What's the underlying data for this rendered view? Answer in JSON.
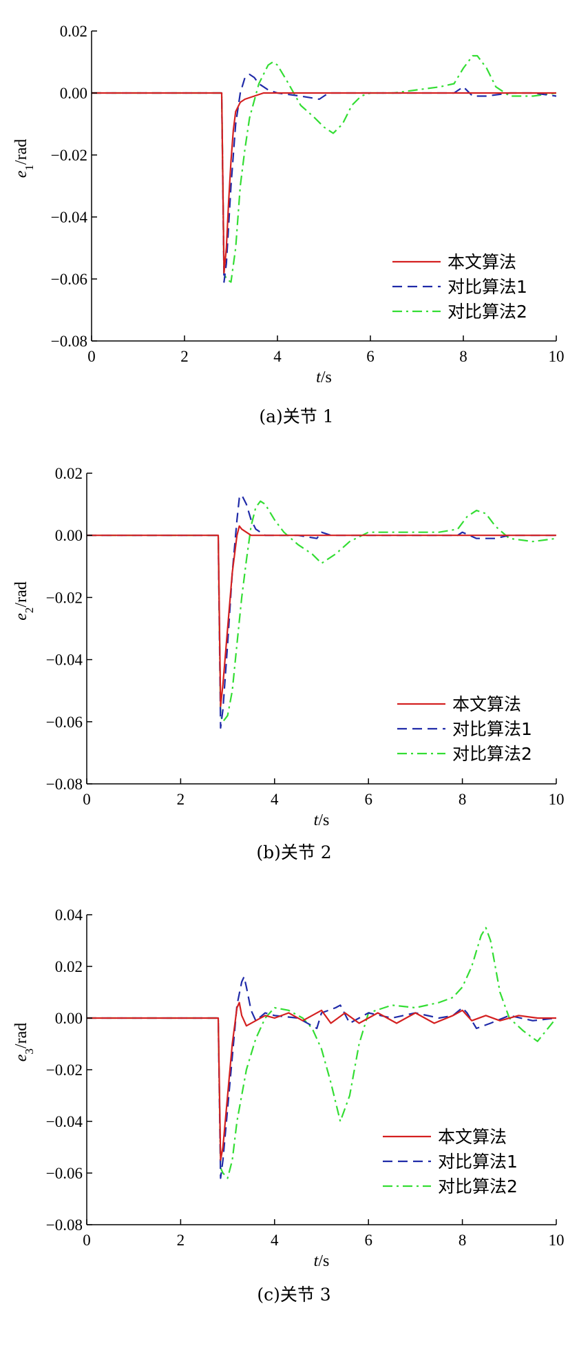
{
  "figure": {
    "legend_entries": [
      "本文算法",
      "对比算法1",
      "对比算法2"
    ],
    "colors": {
      "series_1": "#d42020",
      "series_2": "#1f2aa8",
      "series_3": "#33dd33"
    },
    "line_styles": [
      "solid",
      "dashed",
      "dash-dot"
    ],
    "legend_position": "lower-right"
  },
  "chart_data": [
    {
      "type": "line",
      "caption": "(a)关节 1",
      "ylabel": {
        "sym": "e",
        "sub": "1",
        "unit": "/rad"
      },
      "xlabel": {
        "sym": "t",
        "unit": "/s"
      },
      "xlim": [
        0,
        10
      ],
      "ylim": [
        -0.08,
        0.02
      ],
      "xticks": [
        0,
        2,
        4,
        6,
        8,
        10
      ],
      "xtick_labels": [
        "0",
        "2",
        "4",
        "6",
        "8",
        "10"
      ],
      "yticks": [
        0.02,
        0.0,
        -0.02,
        -0.04,
        -0.06,
        -0.08
      ],
      "ytick_labels": [
        "0.02",
        "0.00",
        "−0.02",
        "−0.04",
        "−0.06",
        "−0.08"
      ],
      "grid": false,
      "series": [
        {
          "name": "本文算法",
          "x": [
            0,
            2.8,
            2.85,
            2.9,
            2.95,
            3.0,
            3.05,
            3.1,
            3.2,
            3.3,
            3.5,
            3.7,
            4.0,
            5.0,
            6.0,
            7.0,
            7.8,
            8.0,
            9.0,
            10.0
          ],
          "y": [
            0,
            0,
            -0.058,
            -0.05,
            -0.035,
            -0.022,
            -0.012,
            -0.006,
            -0.003,
            -0.002,
            -0.001,
            0.0,
            0.0,
            0.0,
            0.0,
            0.0,
            0.0,
            0.0,
            0.0,
            0.0
          ]
        },
        {
          "name": "对比算法1",
          "x": [
            0,
            2.8,
            2.85,
            2.9,
            3.0,
            3.1,
            3.2,
            3.3,
            3.4,
            3.5,
            3.6,
            3.8,
            4.0,
            4.5,
            4.9,
            5.1,
            5.5,
            6.0,
            7.0,
            7.8,
            8.0,
            8.2,
            8.5,
            9.0,
            9.5,
            10.0
          ],
          "y": [
            0,
            0,
            -0.061,
            -0.055,
            -0.03,
            -0.01,
            0.0,
            0.005,
            0.006,
            0.005,
            0.003,
            0.001,
            0.0,
            -0.001,
            -0.002,
            0.0,
            0.0,
            0.0,
            0.0,
            0.0,
            0.002,
            -0.001,
            -0.001,
            0.0,
            0.0,
            -0.001
          ]
        },
        {
          "name": "对比算法2",
          "x": [
            0,
            2.8,
            2.85,
            2.9,
            3.0,
            3.1,
            3.2,
            3.3,
            3.4,
            3.6,
            3.8,
            3.9,
            4.0,
            4.2,
            4.5,
            4.8,
            5.0,
            5.2,
            5.4,
            5.6,
            5.8,
            6.0,
            6.5,
            7.0,
            7.5,
            7.8,
            8.0,
            8.2,
            8.3,
            8.5,
            8.7,
            9.0,
            9.5,
            10.0
          ],
          "y": [
            0,
            0,
            -0.058,
            -0.06,
            -0.061,
            -0.05,
            -0.03,
            -0.018,
            -0.008,
            0.003,
            0.009,
            0.01,
            0.009,
            0.004,
            -0.004,
            -0.008,
            -0.011,
            -0.013,
            -0.01,
            -0.004,
            -0.001,
            0.0,
            0.0,
            0.001,
            0.002,
            0.003,
            0.008,
            0.012,
            0.012,
            0.008,
            0.002,
            -0.001,
            -0.001,
            0.0
          ]
        }
      ]
    },
    {
      "type": "line",
      "caption": "(b)关节 2",
      "ylabel": {
        "sym": "e",
        "sub": "2",
        "unit": "/rad"
      },
      "xlabel": {
        "sym": "t",
        "unit": "/s"
      },
      "xlim": [
        0,
        10
      ],
      "ylim": [
        -0.08,
        0.02
      ],
      "xticks": [
        0,
        2,
        4,
        6,
        8,
        10
      ],
      "xtick_labels": [
        "0",
        "2",
        "4",
        "6",
        "8",
        "10"
      ],
      "yticks": [
        0.02,
        0.0,
        -0.02,
        -0.04,
        -0.06,
        -0.08
      ],
      "ytick_labels": [
        "0.02",
        "0.00",
        "−0.02",
        "−0.04",
        "−0.06",
        "−0.08"
      ],
      "grid": false,
      "series": [
        {
          "name": "本文算法",
          "x": [
            0,
            2.8,
            2.85,
            2.9,
            3.0,
            3.1,
            3.2,
            3.25,
            3.3,
            3.5,
            3.8,
            4.0,
            5.0,
            6.0,
            7.0,
            8.0,
            9.0,
            10.0
          ],
          "y": [
            0,
            0,
            -0.055,
            -0.048,
            -0.03,
            -0.012,
            0.0,
            0.003,
            0.002,
            0.0,
            0.0,
            0.0,
            0.0,
            0.0,
            0.0,
            0.0,
            0.0,
            0.0
          ]
        },
        {
          "name": "对比算法1",
          "x": [
            0,
            2.8,
            2.85,
            2.9,
            3.0,
            3.1,
            3.2,
            3.25,
            3.3,
            3.4,
            3.5,
            3.6,
            3.8,
            4.0,
            4.5,
            4.9,
            5.0,
            5.2,
            6.0,
            7.0,
            7.9,
            8.0,
            8.3,
            8.7,
            9.0,
            10.0
          ],
          "y": [
            0,
            0,
            -0.062,
            -0.056,
            -0.035,
            -0.012,
            0.005,
            0.012,
            0.013,
            0.01,
            0.005,
            0.002,
            0.0,
            0.0,
            0.0,
            -0.001,
            0.001,
            0.0,
            0.0,
            0.0,
            0.0,
            0.001,
            -0.001,
            -0.001,
            0.0,
            0.0
          ]
        },
        {
          "name": "对比算法2",
          "x": [
            0,
            2.8,
            2.85,
            2.9,
            3.0,
            3.1,
            3.2,
            3.3,
            3.4,
            3.5,
            3.6,
            3.7,
            3.8,
            4.0,
            4.2,
            4.5,
            4.8,
            5.0,
            5.3,
            5.6,
            6.0,
            6.5,
            7.0,
            7.5,
            7.9,
            8.1,
            8.3,
            8.5,
            8.7,
            9.0,
            9.5,
            10.0
          ],
          "y": [
            0,
            0,
            -0.058,
            -0.06,
            -0.058,
            -0.05,
            -0.035,
            -0.02,
            -0.008,
            0.003,
            0.009,
            0.011,
            0.01,
            0.005,
            0.001,
            -0.003,
            -0.006,
            -0.009,
            -0.006,
            -0.002,
            0.001,
            0.001,
            0.001,
            0.001,
            0.002,
            0.006,
            0.008,
            0.007,
            0.003,
            -0.001,
            -0.002,
            -0.001
          ]
        }
      ]
    },
    {
      "type": "line",
      "caption": "(c)关节 3",
      "ylabel": {
        "sym": "e",
        "sub": "3",
        "unit": "/rad"
      },
      "xlabel": {
        "sym": "t",
        "unit": "/s"
      },
      "xlim": [
        0,
        10
      ],
      "ylim": [
        -0.08,
        0.04
      ],
      "xticks": [
        0,
        2,
        4,
        6,
        8,
        10
      ],
      "xtick_labels": [
        "0",
        "2",
        "4",
        "6",
        "8",
        "10"
      ],
      "yticks": [
        0.04,
        0.02,
        0.0,
        -0.02,
        -0.04,
        -0.06,
        -0.08
      ],
      "ytick_labels": [
        "0.04",
        "0.02",
        "0.00",
        "−0.02",
        "−0.04",
        "−0.06",
        "−0.08"
      ],
      "grid": false,
      "series": [
        {
          "name": "本文算法",
          "x": [
            0,
            2.8,
            2.85,
            2.9,
            3.0,
            3.1,
            3.2,
            3.25,
            3.3,
            3.4,
            3.6,
            3.8,
            4.0,
            4.3,
            4.6,
            5.0,
            5.2,
            5.5,
            5.8,
            6.2,
            6.6,
            7.0,
            7.4,
            7.8,
            8.0,
            8.2,
            8.5,
            8.8,
            9.2,
            9.6,
            10.0
          ],
          "y": [
            0,
            0,
            -0.055,
            -0.05,
            -0.03,
            -0.01,
            0.004,
            0.006,
            0.001,
            -0.003,
            -0.001,
            0.001,
            0.0,
            0.002,
            -0.001,
            0.003,
            -0.002,
            0.002,
            -0.002,
            0.002,
            -0.002,
            0.002,
            -0.002,
            0.001,
            0.003,
            -0.001,
            0.001,
            -0.001,
            0.001,
            0.0,
            0.0
          ]
        },
        {
          "name": "对比算法1",
          "x": [
            0,
            2.8,
            2.85,
            2.9,
            3.0,
            3.1,
            3.2,
            3.3,
            3.35,
            3.4,
            3.5,
            3.6,
            3.8,
            4.0,
            4.5,
            4.9,
            5.0,
            5.3,
            5.4,
            5.6,
            6.0,
            6.5,
            7.0,
            7.5,
            7.8,
            8.0,
            8.1,
            8.3,
            8.6,
            9.0,
            9.5,
            10.0
          ],
          "y": [
            0,
            0,
            -0.062,
            -0.055,
            -0.035,
            -0.015,
            0.005,
            0.014,
            0.016,
            0.012,
            0.003,
            -0.001,
            0.002,
            0.001,
            0.0,
            -0.004,
            0.002,
            0.004,
            0.005,
            -0.002,
            0.002,
            0.0,
            0.002,
            0.0,
            0.001,
            0.004,
            0.002,
            -0.004,
            -0.002,
            0.001,
            -0.001,
            0.0
          ]
        },
        {
          "name": "对比算法2",
          "x": [
            0,
            2.8,
            2.85,
            2.9,
            3.0,
            3.1,
            3.2,
            3.4,
            3.6,
            3.8,
            4.0,
            4.3,
            4.6,
            4.8,
            5.0,
            5.2,
            5.4,
            5.6,
            5.8,
            6.0,
            6.5,
            7.0,
            7.5,
            7.8,
            8.0,
            8.2,
            8.4,
            8.5,
            8.6,
            8.8,
            9.0,
            9.3,
            9.6,
            10.0
          ],
          "y": [
            0,
            0,
            -0.058,
            -0.06,
            -0.062,
            -0.055,
            -0.04,
            -0.02,
            -0.008,
            0.0,
            0.004,
            0.003,
            0.0,
            -0.004,
            -0.012,
            -0.025,
            -0.04,
            -0.03,
            -0.01,
            0.002,
            0.005,
            0.004,
            0.006,
            0.008,
            0.012,
            0.02,
            0.032,
            0.035,
            0.03,
            0.01,
            0.0,
            -0.005,
            -0.009,
            0.0
          ]
        }
      ]
    }
  ]
}
